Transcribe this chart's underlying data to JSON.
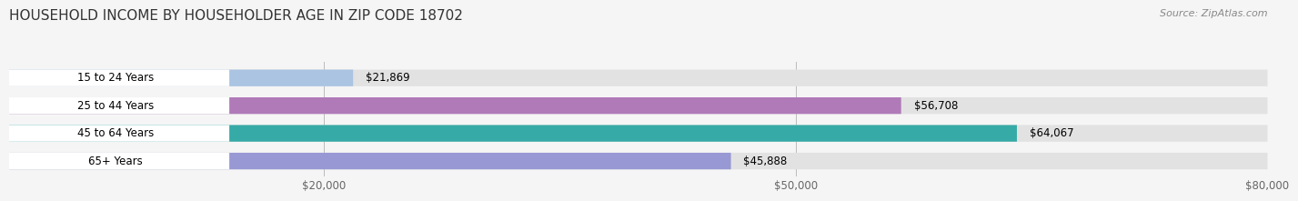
{
  "title": "HOUSEHOLD INCOME BY HOUSEHOLDER AGE IN ZIP CODE 18702",
  "source": "Source: ZipAtlas.com",
  "categories": [
    "15 to 24 Years",
    "25 to 44 Years",
    "45 to 64 Years",
    "65+ Years"
  ],
  "values": [
    21869,
    56708,
    64067,
    45888
  ],
  "bar_colors": [
    "#aac4e2",
    "#b07ab8",
    "#36aaa6",
    "#9898d4"
  ],
  "bar_labels": [
    "$21,869",
    "$56,708",
    "$64,067",
    "$45,888"
  ],
  "xmax": 80000,
  "xticks": [
    20000,
    50000,
    80000
  ],
  "xtick_labels": [
    "$20,000",
    "$50,000",
    "$80,000"
  ],
  "bg_color": "#f5f5f5",
  "bar_bg_color": "#e2e2e2",
  "title_fontsize": 11,
  "source_fontsize": 8,
  "label_fontsize": 8.5,
  "tick_fontsize": 8.5,
  "category_fontsize": 8.5
}
